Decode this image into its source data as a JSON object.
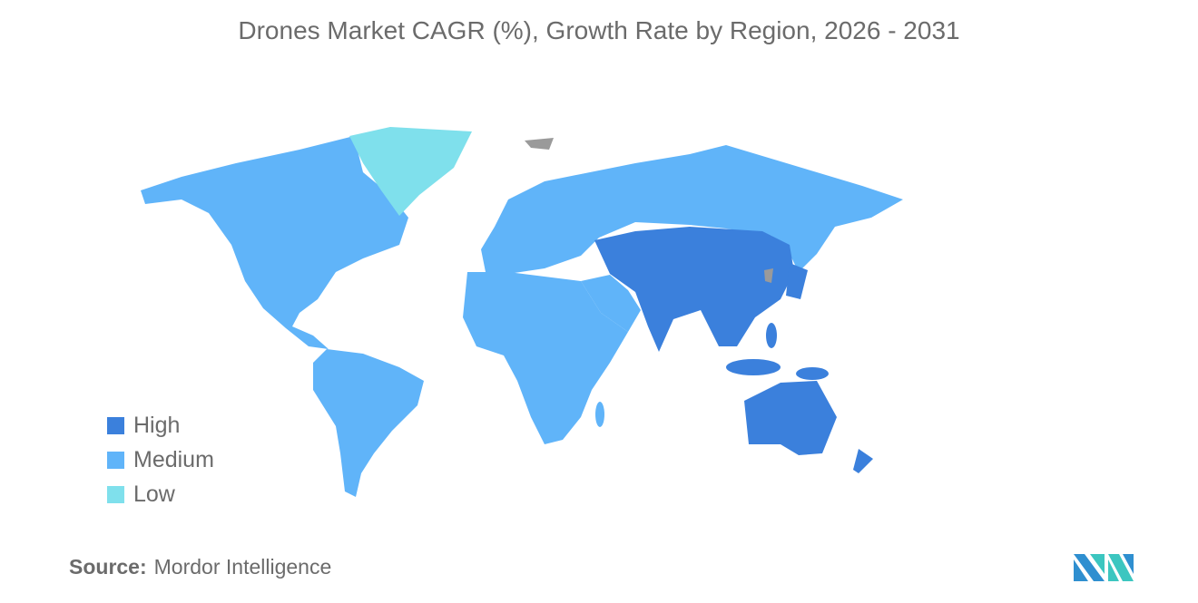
{
  "title": "Drones Market CAGR (%), Growth Rate by Region, 2026 - 2031",
  "legend": [
    {
      "label": "High",
      "color": "#3b80dc"
    },
    {
      "label": "Medium",
      "color": "#60b4f9"
    },
    {
      "label": "Low",
      "color": "#7fe0ec"
    }
  ],
  "no_data_color": "#9a9a9a",
  "regions": {
    "Asia-Pacific": "High",
    "North America": "Medium",
    "South America": "Medium",
    "Europe": "Medium",
    "Middle East and Africa": "Medium",
    "Greenland": "Low"
  },
  "source": {
    "label": "Source:",
    "value": "Mordor Intelligence"
  },
  "logo": "mordor-intelligence-logo"
}
